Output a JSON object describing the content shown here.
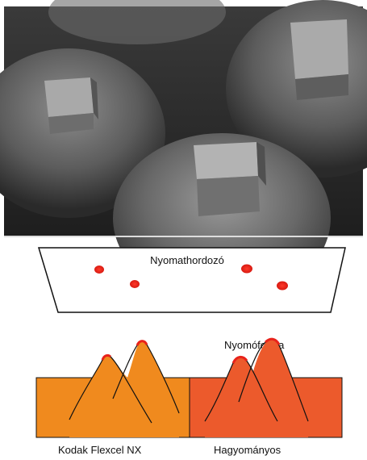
{
  "top_panel": {
    "description_visible": false,
    "colors": {
      "background_dark": "#2a2a2a",
      "surface_mid": "#8a8a8a",
      "dot_top": "#a3a3a3"
    }
  },
  "bottom_panel": {
    "substrate_label": "Nyomathordozó",
    "plate_label": "Nyomóforma",
    "left_label": "Kodak Flexcel NX",
    "right_label": "Hagyományos",
    "colors": {
      "ink_dot": "#e8221a",
      "left_block": "#f08a1e",
      "right_block": "#ec5a2c",
      "outline": "#111111"
    }
  }
}
